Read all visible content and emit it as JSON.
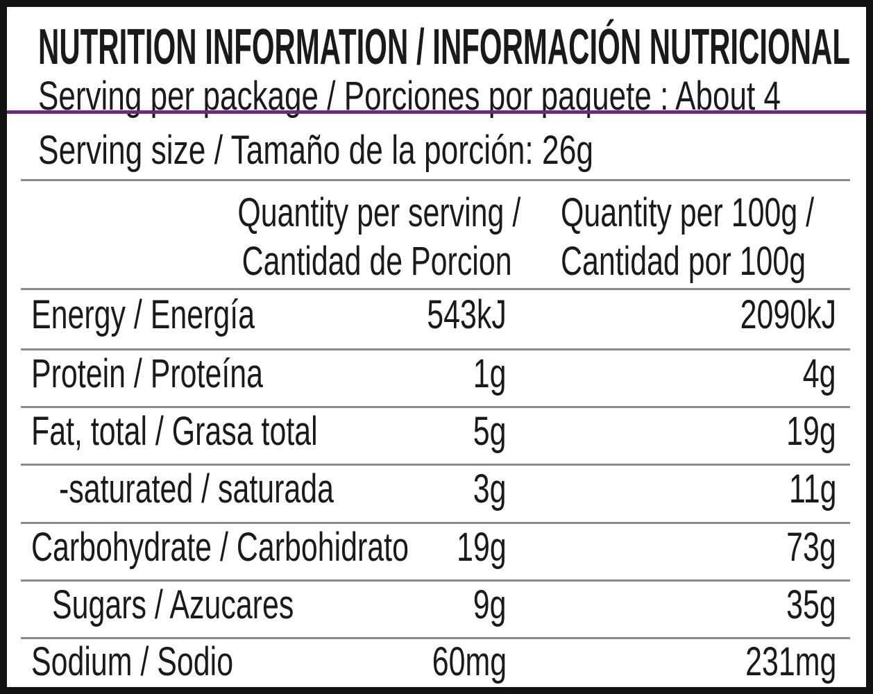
{
  "header": {
    "title": "NUTRITION INFORMATION / INFORMACIÓN NUTRICIONAL",
    "servings_per_package": "Serving per package / Porciones por paquete : About 4",
    "serving_size": "Serving size / Tamaño de la porción: 26g"
  },
  "table": {
    "headers": [
      [
        "Quantity per serving /",
        "Cantidad de Porcion"
      ],
      [
        "Quantity per 100g /",
        "Cantidad por 100g"
      ]
    ],
    "rows": [
      [
        "Energy / Energía",
        "543kJ",
        "2090kJ"
      ],
      [
        "Protein / Proteína",
        "1g",
        "4g"
      ],
      [
        "Fat, total / Grasa total",
        "5g",
        "19g"
      ],
      [
        "-saturated / saturada",
        "3g",
        "11g"
      ],
      [
        "Carbohydrate / Carbohidrato",
        "19g",
        "73g"
      ],
      [
        "Sugars / Azucares",
        "9g",
        "35g"
      ],
      [
        "Sodium / Sodio",
        "60mg",
        "231mg"
      ]
    ]
  }
}
